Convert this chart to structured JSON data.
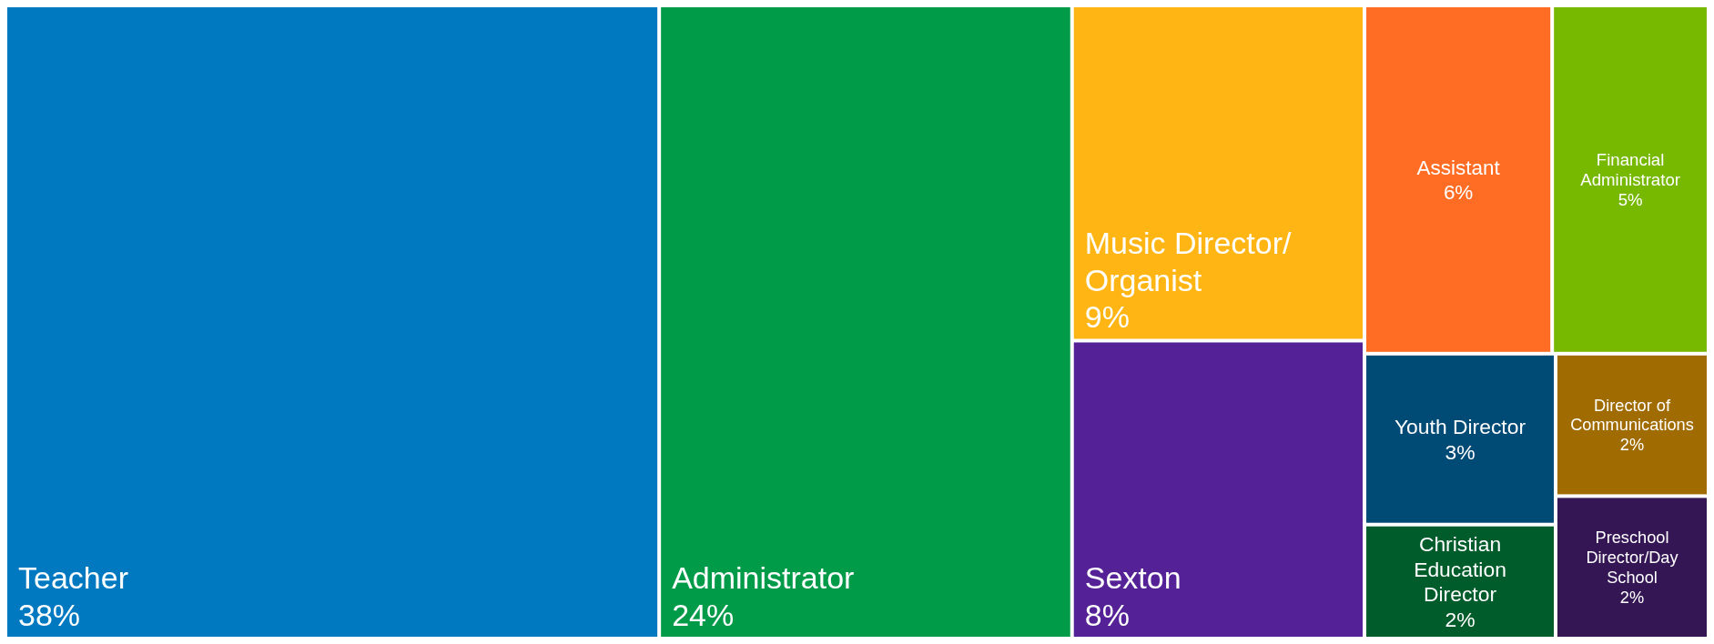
{
  "chart_data": {
    "type": "other",
    "categories": [
      "Teacher",
      "Administrator",
      "Music Director/Organist",
      "Sexton",
      "Assistant",
      "Financial Administrator",
      "Youth Director",
      "Christian Education Director",
      "Director of Communications",
      "Preschool Director/Day School"
    ],
    "values": [
      38,
      24,
      9,
      8,
      6,
      5,
      3,
      2,
      2,
      2
    ],
    "value_labels": [
      "38%",
      "24%",
      "9%",
      "8%",
      "6%",
      "5%",
      "3%",
      "2%",
      "2%",
      "2%"
    ],
    "colors": [
      "#0079c1",
      "#009b48",
      "#ffb514",
      "#542296",
      "#ff6d24",
      "#77b800",
      "#004a76",
      "#005c2b",
      "#a06b00",
      "#341655"
    ]
  }
}
